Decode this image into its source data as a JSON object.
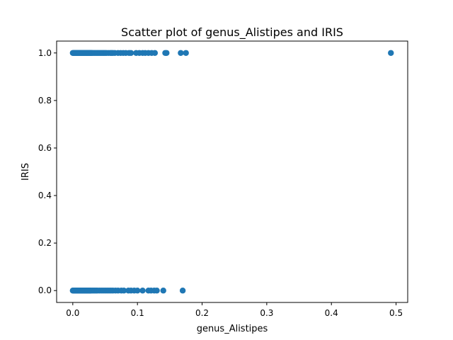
{
  "chart_data": {
    "type": "scatter",
    "title": "Scatter plot of genus_Alistipes and IRIS",
    "xlabel": "genus_Alistipes",
    "ylabel": "IRIS",
    "xlim": [
      -0.025,
      0.518
    ],
    "ylim": [
      -0.05,
      1.05
    ],
    "xticks": [
      0.0,
      0.1,
      0.2,
      0.3,
      0.4,
      0.5
    ],
    "xtick_labels": [
      "0.0",
      "0.1",
      "0.2",
      "0.3",
      "0.4",
      "0.5"
    ],
    "yticks": [
      0.0,
      0.2,
      0.4,
      0.6,
      0.8,
      1.0
    ],
    "ytick_labels": [
      "0.0",
      "0.2",
      "0.4",
      "0.6",
      "0.8",
      "1.0"
    ],
    "grid": false,
    "marker_color": "#1f77b4",
    "series": [
      {
        "points": [
          {
            "x": 0.0,
            "y": 1
          },
          {
            "x": 0.001,
            "y": 1
          },
          {
            "x": 0.002,
            "y": 1
          },
          {
            "x": 0.003,
            "y": 1
          },
          {
            "x": 0.004,
            "y": 1
          },
          {
            "x": 0.005,
            "y": 1
          },
          {
            "x": 0.006,
            "y": 1
          },
          {
            "x": 0.007,
            "y": 1
          },
          {
            "x": 0.008,
            "y": 1
          },
          {
            "x": 0.009,
            "y": 1
          },
          {
            "x": 0.01,
            "y": 1
          },
          {
            "x": 0.011,
            "y": 1
          },
          {
            "x": 0.012,
            "y": 1
          },
          {
            "x": 0.013,
            "y": 1
          },
          {
            "x": 0.014,
            "y": 1
          },
          {
            "x": 0.015,
            "y": 1
          },
          {
            "x": 0.016,
            "y": 1
          },
          {
            "x": 0.017,
            "y": 1
          },
          {
            "x": 0.018,
            "y": 1
          },
          {
            "x": 0.019,
            "y": 1
          },
          {
            "x": 0.02,
            "y": 1
          },
          {
            "x": 0.021,
            "y": 1
          },
          {
            "x": 0.022,
            "y": 1
          },
          {
            "x": 0.023,
            "y": 1
          },
          {
            "x": 0.024,
            "y": 1
          },
          {
            "x": 0.025,
            "y": 1
          },
          {
            "x": 0.026,
            "y": 1
          },
          {
            "x": 0.027,
            "y": 1
          },
          {
            "x": 0.028,
            "y": 1
          },
          {
            "x": 0.029,
            "y": 1
          },
          {
            "x": 0.03,
            "y": 1
          },
          {
            "x": 0.032,
            "y": 1
          },
          {
            "x": 0.034,
            "y": 1
          },
          {
            "x": 0.036,
            "y": 1
          },
          {
            "x": 0.038,
            "y": 1
          },
          {
            "x": 0.04,
            "y": 1
          },
          {
            "x": 0.042,
            "y": 1
          },
          {
            "x": 0.044,
            "y": 1
          },
          {
            "x": 0.046,
            "y": 1
          },
          {
            "x": 0.048,
            "y": 1
          },
          {
            "x": 0.05,
            "y": 1
          },
          {
            "x": 0.052,
            "y": 1
          },
          {
            "x": 0.055,
            "y": 1
          },
          {
            "x": 0.058,
            "y": 1
          },
          {
            "x": 0.06,
            "y": 1
          },
          {
            "x": 0.062,
            "y": 1
          },
          {
            "x": 0.065,
            "y": 1
          },
          {
            "x": 0.07,
            "y": 1
          },
          {
            "x": 0.074,
            "y": 1
          },
          {
            "x": 0.078,
            "y": 1
          },
          {
            "x": 0.082,
            "y": 1
          },
          {
            "x": 0.087,
            "y": 1
          },
          {
            "x": 0.09,
            "y": 1
          },
          {
            "x": 0.098,
            "y": 1
          },
          {
            "x": 0.103,
            "y": 1
          },
          {
            "x": 0.108,
            "y": 1
          },
          {
            "x": 0.112,
            "y": 1
          },
          {
            "x": 0.117,
            "y": 1
          },
          {
            "x": 0.122,
            "y": 1
          },
          {
            "x": 0.127,
            "y": 1
          },
          {
            "x": 0.143,
            "y": 1
          },
          {
            "x": 0.145,
            "y": 1
          },
          {
            "x": 0.167,
            "y": 1
          },
          {
            "x": 0.175,
            "y": 1
          },
          {
            "x": 0.492,
            "y": 1
          },
          {
            "x": 0.0,
            "y": 0
          },
          {
            "x": 0.001,
            "y": 0
          },
          {
            "x": 0.002,
            "y": 0
          },
          {
            "x": 0.003,
            "y": 0
          },
          {
            "x": 0.004,
            "y": 0
          },
          {
            "x": 0.005,
            "y": 0
          },
          {
            "x": 0.006,
            "y": 0
          },
          {
            "x": 0.007,
            "y": 0
          },
          {
            "x": 0.008,
            "y": 0
          },
          {
            "x": 0.009,
            "y": 0
          },
          {
            "x": 0.01,
            "y": 0
          },
          {
            "x": 0.011,
            "y": 0
          },
          {
            "x": 0.012,
            "y": 0
          },
          {
            "x": 0.013,
            "y": 0
          },
          {
            "x": 0.014,
            "y": 0
          },
          {
            "x": 0.015,
            "y": 0
          },
          {
            "x": 0.016,
            "y": 0
          },
          {
            "x": 0.017,
            "y": 0
          },
          {
            "x": 0.018,
            "y": 0
          },
          {
            "x": 0.019,
            "y": 0
          },
          {
            "x": 0.02,
            "y": 0
          },
          {
            "x": 0.021,
            "y": 0
          },
          {
            "x": 0.022,
            "y": 0
          },
          {
            "x": 0.023,
            "y": 0
          },
          {
            "x": 0.024,
            "y": 0
          },
          {
            "x": 0.025,
            "y": 0
          },
          {
            "x": 0.026,
            "y": 0
          },
          {
            "x": 0.027,
            "y": 0
          },
          {
            "x": 0.028,
            "y": 0
          },
          {
            "x": 0.03,
            "y": 0
          },
          {
            "x": 0.032,
            "y": 0
          },
          {
            "x": 0.034,
            "y": 0
          },
          {
            "x": 0.036,
            "y": 0
          },
          {
            "x": 0.038,
            "y": 0
          },
          {
            "x": 0.041,
            "y": 0
          },
          {
            "x": 0.044,
            "y": 0
          },
          {
            "x": 0.047,
            "y": 0
          },
          {
            "x": 0.05,
            "y": 0
          },
          {
            "x": 0.053,
            "y": 0
          },
          {
            "x": 0.056,
            "y": 0
          },
          {
            "x": 0.059,
            "y": 0
          },
          {
            "x": 0.062,
            "y": 0
          },
          {
            "x": 0.066,
            "y": 0
          },
          {
            "x": 0.07,
            "y": 0
          },
          {
            "x": 0.075,
            "y": 0
          },
          {
            "x": 0.079,
            "y": 0
          },
          {
            "x": 0.086,
            "y": 0
          },
          {
            "x": 0.09,
            "y": 0
          },
          {
            "x": 0.095,
            "y": 0
          },
          {
            "x": 0.1,
            "y": 0
          },
          {
            "x": 0.108,
            "y": 0
          },
          {
            "x": 0.117,
            "y": 0
          },
          {
            "x": 0.121,
            "y": 0
          },
          {
            "x": 0.126,
            "y": 0
          },
          {
            "x": 0.13,
            "y": 0
          },
          {
            "x": 0.14,
            "y": 0
          },
          {
            "x": 0.17,
            "y": 0
          }
        ]
      }
    ]
  }
}
